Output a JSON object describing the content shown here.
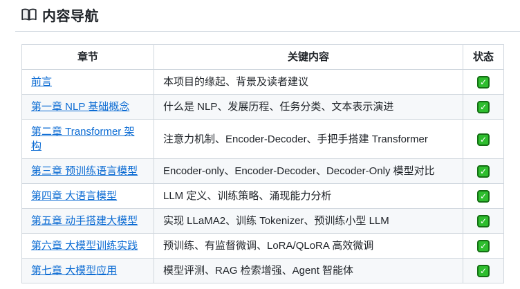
{
  "page": {
    "title": "内容导航",
    "title_icon": "open-book-icon"
  },
  "table": {
    "headers": [
      "章节",
      "关键内容",
      "状态"
    ],
    "rows": [
      {
        "chapter": "前言",
        "content": "本项目的缘起、背景及读者建议",
        "status": "done"
      },
      {
        "chapter": "第一章 NLP 基础概念",
        "content": "什么是 NLP、发展历程、任务分类、文本表示演进",
        "status": "done"
      },
      {
        "chapter": "第二章 Transformer 架构",
        "content": "注意力机制、Encoder-Decoder、手把手搭建 Transformer",
        "status": "done"
      },
      {
        "chapter": "第三章 预训练语言模型",
        "content": "Encoder-only、Encoder-Decoder、Decoder-Only 模型对比",
        "status": "done"
      },
      {
        "chapter": "第四章 大语言模型",
        "content": "LLM 定义、训练策略、涌现能力分析",
        "status": "done"
      },
      {
        "chapter": "第五章 动手搭建大模型",
        "content": "实现 LLaMA2、训练 Tokenizer、预训练小型 LLM",
        "status": "done"
      },
      {
        "chapter": "第六章 大模型训练实践",
        "content": "预训练、有监督微调、LoRA/QLoRA 高效微调",
        "status": "done"
      },
      {
        "chapter": "第七章 大模型应用",
        "content": "模型评测、RAG 检索增强、Agent 智能体",
        "status": "done"
      }
    ],
    "status_done_symbol": "✓"
  },
  "colors": {
    "text": "#1f2328",
    "link": "#0b6bd3",
    "border": "#d0d7de",
    "row_alt": "#f6f8fa",
    "check_fill": "#2ebd2e",
    "check_border": "#146e14"
  }
}
